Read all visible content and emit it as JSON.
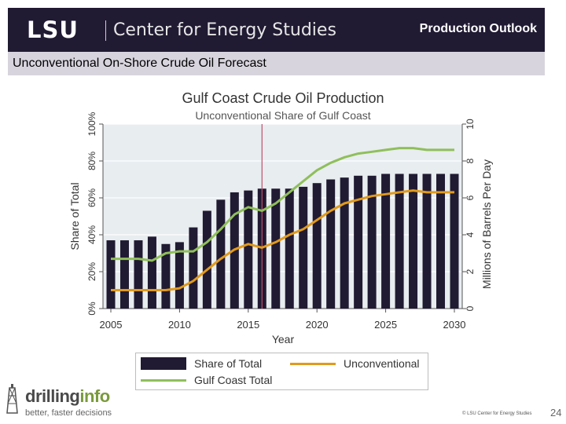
{
  "header": {
    "logo_text": "LSU",
    "center_name": "Center for Energy Studies",
    "section_title": "Production Outlook"
  },
  "subtitle_bar": "Unconventional On-Shore Crude Oil Forecast",
  "chart_data": {
    "type": "bar+line",
    "title": "Gulf Coast Crude Oil Production",
    "subtitle": "Unconventional Share of Gulf Coast",
    "xlabel": "Year",
    "ylabel_left": "Share of Total",
    "ylabel_right": "Millions of Barrels Per Day",
    "x": [
      2005,
      2006,
      2007,
      2008,
      2009,
      2010,
      2011,
      2012,
      2013,
      2014,
      2015,
      2016,
      2017,
      2018,
      2019,
      2020,
      2021,
      2022,
      2023,
      2024,
      2025,
      2026,
      2027,
      2028,
      2029,
      2030
    ],
    "x_ticks": [
      "2005",
      "2010",
      "2015",
      "2020",
      "2025",
      "2030"
    ],
    "y_left_ticks": [
      "0%",
      "20%",
      "40%",
      "60%",
      "80%",
      "100%"
    ],
    "y_left_lim": [
      0,
      100
    ],
    "y_right_ticks": [
      "0",
      "2",
      "4",
      "6",
      "8",
      "10"
    ],
    "y_right_lim": [
      0,
      10
    ],
    "vline_x": 2016,
    "series": [
      {
        "name": "Share of Total",
        "type": "bar",
        "axis": "left",
        "color": "#211a33",
        "values": [
          37,
          37,
          37,
          39,
          35,
          36,
          44,
          53,
          59,
          63,
          64,
          65,
          65,
          65,
          66,
          68,
          70,
          71,
          72,
          72,
          73,
          73,
          73,
          73,
          73,
          73
        ]
      },
      {
        "name": "Unconventional",
        "type": "line",
        "axis": "right",
        "color": "#e09a1c",
        "values": [
          1.0,
          1.0,
          1.0,
          1.0,
          1.0,
          1.1,
          1.5,
          2.1,
          2.7,
          3.2,
          3.5,
          3.3,
          3.6,
          4.0,
          4.3,
          4.8,
          5.3,
          5.7,
          5.9,
          6.1,
          6.2,
          6.3,
          6.4,
          6.3,
          6.3,
          6.3
        ]
      },
      {
        "name": "Gulf Coast Total",
        "type": "line",
        "axis": "right",
        "color": "#8fbf5a",
        "values": [
          2.7,
          2.7,
          2.7,
          2.6,
          3.0,
          3.1,
          3.1,
          3.6,
          4.3,
          5.1,
          5.5,
          5.3,
          5.7,
          6.3,
          6.9,
          7.5,
          7.9,
          8.2,
          8.4,
          8.5,
          8.6,
          8.7,
          8.7,
          8.6,
          8.6,
          8.6
        ]
      }
    ],
    "legend_position": "bottom",
    "grid": true
  },
  "footer": {
    "brand_word_a": "drilling",
    "brand_word_b": "info",
    "brand_tagline": "better, faster decisions",
    "copyright": "© LSU Center for Energy Studies",
    "page_number": "24"
  }
}
